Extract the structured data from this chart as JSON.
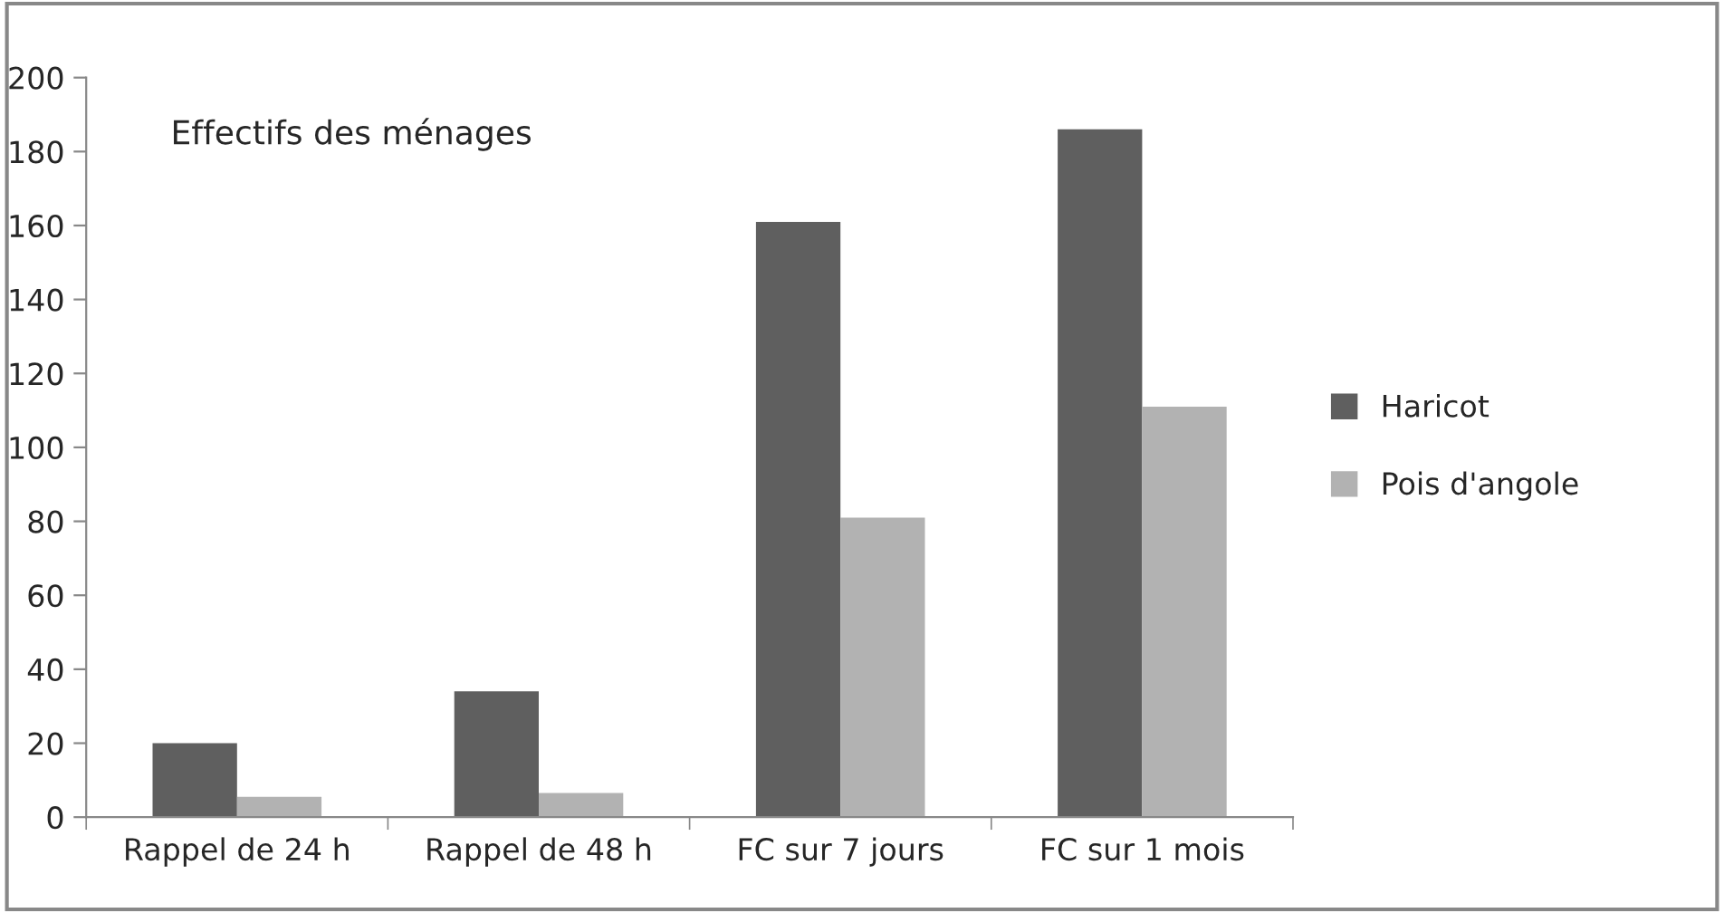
{
  "chart_data": {
    "type": "bar",
    "title": "Effectifs des ménages",
    "categories": [
      "Rappel de 24 h",
      "Rappel de 48 h",
      "FC sur 7 jours",
      "FC sur 1 mois"
    ],
    "series": [
      {
        "name": "Haricot",
        "color": "#5f5f5f",
        "values": [
          20,
          34,
          161,
          186
        ]
      },
      {
        "name": "Pois d'angole",
        "color": "#b2b2b2",
        "values": [
          5.5,
          6.5,
          81,
          111
        ]
      }
    ],
    "ylim": [
      0,
      200
    ],
    "yticks": [
      0,
      20,
      40,
      60,
      80,
      100,
      120,
      140,
      160,
      180,
      200
    ],
    "grid": false,
    "legend": "right"
  }
}
